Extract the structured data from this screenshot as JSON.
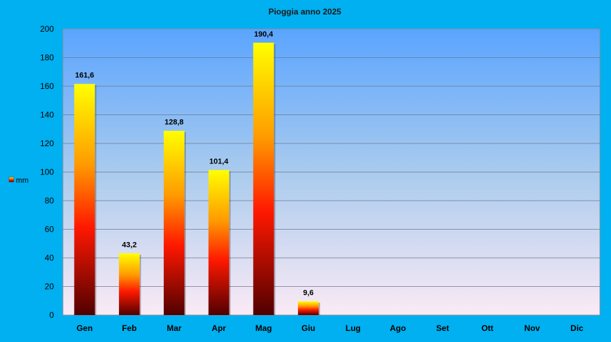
{
  "chart_data": {
    "type": "bar",
    "title": "Pioggia anno 2025",
    "categories": [
      "Gen",
      "Feb",
      "Mar",
      "Apr",
      "Mag",
      "Giu",
      "Lug",
      "Ago",
      "Set",
      "Ott",
      "Nov",
      "Dic"
    ],
    "series": [
      {
        "name": "mm",
        "values": [
          161.6,
          43.2,
          128.8,
          101.4,
          190.4,
          9.6,
          null,
          null,
          null,
          null,
          null,
          null
        ],
        "data_labels": [
          "161,6",
          "43,2",
          "128,8",
          "101,4",
          "190,4",
          "9,6",
          "",
          "",
          "",
          "",
          "",
          ""
        ]
      }
    ],
    "ylim": [
      0,
      200
    ],
    "yticks": [
      "0",
      "20",
      "40",
      "60",
      "80",
      "100",
      "120",
      "140",
      "160",
      "180",
      "200"
    ],
    "grid": true,
    "legend_position": "left",
    "colors": {
      "page_background": "#00b0f0",
      "plot_top": "#5aa4ff",
      "plot_bottom": "#fbeaf5",
      "bar_top": "#ffff00",
      "bar_mid": "#ff1800",
      "bar_bottom": "#500000",
      "gridline": "#6b7a8c"
    }
  }
}
